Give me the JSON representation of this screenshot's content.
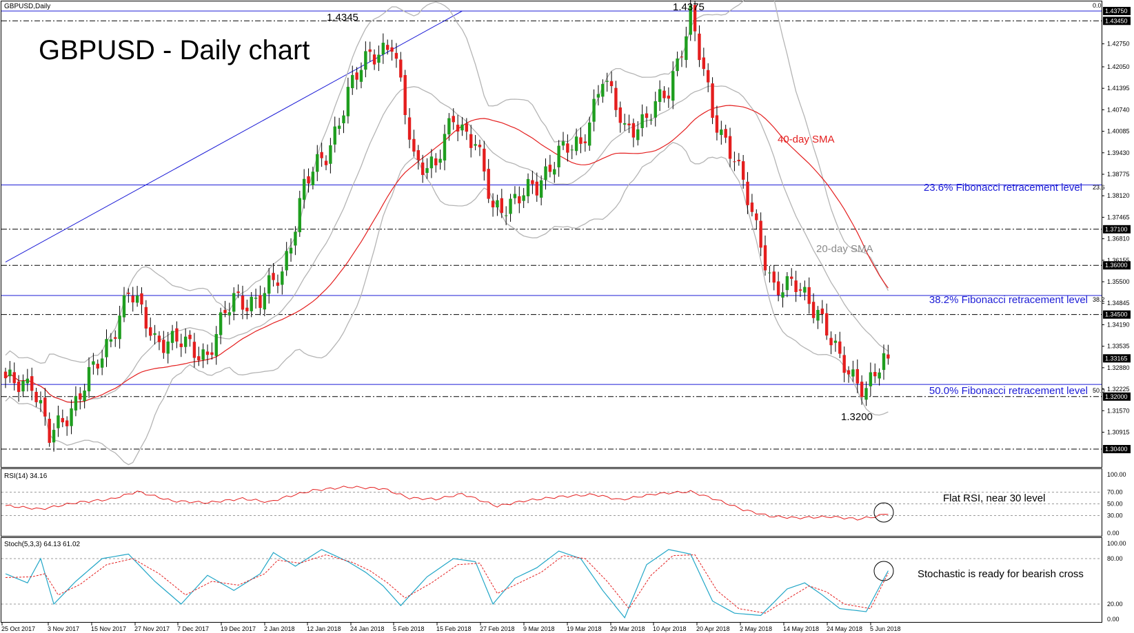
{
  "chart_data": [
    {
      "type": "candlestick",
      "symbol_label": "GBPUSD,Daily",
      "title": "GBPUSD - Daily chart",
      "ylim": [
        1.3,
        1.4375
      ],
      "y_ticks": [
        "1.43750",
        "1.43450",
        "1.42750",
        "1.42050",
        "1.41395",
        "1.40740",
        "1.40085",
        "1.39430",
        "1.38775",
        "1.38120",
        "1.37465",
        "1.37100",
        "1.36810",
        "1.36155",
        "1.36000",
        "1.35500",
        "1.34845",
        "1.34500",
        "1.34190",
        "1.33535",
        "1.33165",
        "1.32880",
        "1.32225",
        "1.32000",
        "1.31570",
        "1.30915",
        "1.30400"
      ],
      "price_tags": [
        "1.43750",
        "1.43450",
        "1.37100",
        "1.36000",
        "1.34500",
        "1.33165",
        "1.32000",
        "1.30400"
      ],
      "x_labels": [
        "25 Oct 2017",
        "3 Nov 2017",
        "15 Nov 2017",
        "27 Nov 2017",
        "7 Dec 2017",
        "19 Dec 2017",
        "2 Jan 2018",
        "12 Jan 2018",
        "24 Jan 2018",
        "5 Feb 2018",
        "15 Feb 2018",
        "27 Feb 2018",
        "9 Mar 2018",
        "19 Mar 2018",
        "29 Mar 2018",
        "10 Apr 2018",
        "20 Apr 2018",
        "2 May 2018",
        "14 May 2018",
        "24 May 2018",
        "5 Jun 2018"
      ],
      "close_anchors": [
        [
          0,
          1.324
        ],
        [
          6,
          1.325
        ],
        [
          10,
          1.307
        ],
        [
          16,
          1.319
        ],
        [
          22,
          1.332
        ],
        [
          28,
          1.352
        ],
        [
          34,
          1.338
        ],
        [
          40,
          1.336
        ],
        [
          46,
          1.333
        ],
        [
          52,
          1.35
        ],
        [
          58,
          1.349
        ],
        [
          63,
          1.358
        ],
        [
          68,
          1.384
        ],
        [
          73,
          1.394
        ],
        [
          78,
          1.412
        ],
        [
          83,
          1.425
        ],
        [
          88,
          1.427
        ],
        [
          93,
          1.393
        ],
        [
          98,
          1.39
        ],
        [
          102,
          1.405
        ],
        [
          107,
          1.398
        ],
        [
          111,
          1.376
        ],
        [
          116,
          1.381
        ],
        [
          121,
          1.383
        ],
        [
          126,
          1.396
        ],
        [
          131,
          1.395
        ],
        [
          136,
          1.419
        ],
        [
          141,
          1.4
        ],
        [
          146,
          1.406
        ],
        [
          151,
          1.412
        ],
        [
          156,
          1.4375
        ],
        [
          161,
          1.405
        ],
        [
          166,
          1.394
        ],
        [
          171,
          1.37
        ],
        [
          175,
          1.354
        ],
        [
          180,
          1.353
        ],
        [
          185,
          1.347
        ],
        [
          190,
          1.33
        ],
        [
          196,
          1.323
        ],
        [
          201,
          1.3316
        ]
      ],
      "fibonacci": [
        {
          "label": "23.6% Fibonacci retracement level",
          "tag": "23.6",
          "price": 1.3845
        },
        {
          "label": "38.2% Fibonacci retracement level",
          "tag": "38.2",
          "price": 1.3508
        },
        {
          "label": "50.0% Fibonacci retracement level",
          "tag": "50.0",
          "price": 1.3237
        }
      ],
      "fib_top_tag": "0.0",
      "fib_top_price": 1.4375,
      "horizontal_levels": [
        1.4345,
        1.371,
        1.36,
        1.345,
        1.32,
        1.304
      ],
      "trendline": {
        "from": [
          0,
          1.361
        ],
        "to": [
          104,
          1.4375
        ]
      },
      "sma40_label": "40-day SMA",
      "sma20_label": "20-day SMA",
      "annotations": {
        "high1": "1.4345",
        "high2": "1.4375",
        "low": "1.3200"
      },
      "colors": {
        "up": "#1f9e1f",
        "down": "#e41e1e",
        "fib": "#1b1bd6",
        "sma40": "#e41e1e",
        "bands": "#b4b4b4"
      }
    },
    {
      "type": "line",
      "label": "RSI(14) 34.16",
      "ylim": [
        0,
        100
      ],
      "y_ticks": [
        "100.00",
        "70.00",
        "50.00",
        "30.00",
        "0.00"
      ],
      "levels": [
        70,
        50,
        30
      ],
      "anchors": [
        [
          0,
          47
        ],
        [
          8,
          41
        ],
        [
          16,
          52
        ],
        [
          24,
          58
        ],
        [
          30,
          71
        ],
        [
          38,
          55
        ],
        [
          46,
          52
        ],
        [
          54,
          59
        ],
        [
          60,
          53
        ],
        [
          64,
          62
        ],
        [
          70,
          73
        ],
        [
          78,
          79
        ],
        [
          86,
          76
        ],
        [
          92,
          60
        ],
        [
          98,
          58
        ],
        [
          104,
          67
        ],
        [
          112,
          46
        ],
        [
          118,
          55
        ],
        [
          126,
          62
        ],
        [
          134,
          66
        ],
        [
          140,
          57
        ],
        [
          148,
          67
        ],
        [
          156,
          71
        ],
        [
          162,
          57
        ],
        [
          168,
          40
        ],
        [
          174,
          29
        ],
        [
          180,
          26
        ],
        [
          188,
          28
        ],
        [
          194,
          24
        ],
        [
          198,
          28
        ],
        [
          201,
          34
        ]
      ],
      "annotation": "Flat RSI, near 30 level",
      "color": "#e41e1e"
    },
    {
      "type": "line",
      "label": "Stoch(5,3,3) 64.13 61.02",
      "ylim": [
        0,
        100
      ],
      "y_ticks": [
        "100.00",
        "80.00",
        "20.00",
        "0.00"
      ],
      "levels": [
        80,
        20
      ],
      "k_anchors": [
        [
          0,
          60
        ],
        [
          5,
          48
        ],
        [
          8,
          80
        ],
        [
          11,
          20
        ],
        [
          16,
          50
        ],
        [
          22,
          80
        ],
        [
          28,
          86
        ],
        [
          34,
          50
        ],
        [
          40,
          20
        ],
        [
          46,
          58
        ],
        [
          52,
          38
        ],
        [
          58,
          60
        ],
        [
          61,
          88
        ],
        [
          66,
          70
        ],
        [
          72,
          92
        ],
        [
          78,
          76
        ],
        [
          82,
          62
        ],
        [
          86,
          44
        ],
        [
          90,
          18
        ],
        [
          96,
          56
        ],
        [
          102,
          80
        ],
        [
          107,
          76
        ],
        [
          111,
          20
        ],
        [
          116,
          54
        ],
        [
          121,
          68
        ],
        [
          126,
          90
        ],
        [
          131,
          80
        ],
        [
          136,
          38
        ],
        [
          141,
          2
        ],
        [
          146,
          72
        ],
        [
          151,
          92
        ],
        [
          156,
          86
        ],
        [
          161,
          24
        ],
        [
          166,
          8
        ],
        [
          172,
          5
        ],
        [
          178,
          40
        ],
        [
          182,
          48
        ],
        [
          186,
          32
        ],
        [
          190,
          14
        ],
        [
          196,
          10
        ],
        [
          201,
          64
        ]
      ],
      "d_anchors": [
        [
          0,
          55
        ],
        [
          6,
          56
        ],
        [
          9,
          60
        ],
        [
          12,
          32
        ],
        [
          17,
          46
        ],
        [
          23,
          72
        ],
        [
          29,
          80
        ],
        [
          35,
          60
        ],
        [
          41,
          32
        ],
        [
          47,
          50
        ],
        [
          53,
          45
        ],
        [
          59,
          60
        ],
        [
          62,
          78
        ],
        [
          67,
          74
        ],
        [
          73,
          85
        ],
        [
          79,
          75
        ],
        [
          83,
          64
        ],
        [
          87,
          48
        ],
        [
          91,
          28
        ],
        [
          97,
          48
        ],
        [
          103,
          72
        ],
        [
          108,
          74
        ],
        [
          112,
          34
        ],
        [
          117,
          48
        ],
        [
          122,
          62
        ],
        [
          127,
          84
        ],
        [
          132,
          80
        ],
        [
          137,
          50
        ],
        [
          142,
          14
        ],
        [
          147,
          58
        ],
        [
          152,
          84
        ],
        [
          157,
          85
        ],
        [
          162,
          38
        ],
        [
          167,
          14
        ],
        [
          173,
          8
        ],
        [
          179,
          30
        ],
        [
          183,
          44
        ],
        [
          187,
          36
        ],
        [
          191,
          20
        ],
        [
          197,
          14
        ],
        [
          201,
          61
        ]
      ],
      "annotation": "Stochastic is ready for bearish cross",
      "k_color": "#21a6c7",
      "d_color": "#e41e1e"
    }
  ]
}
